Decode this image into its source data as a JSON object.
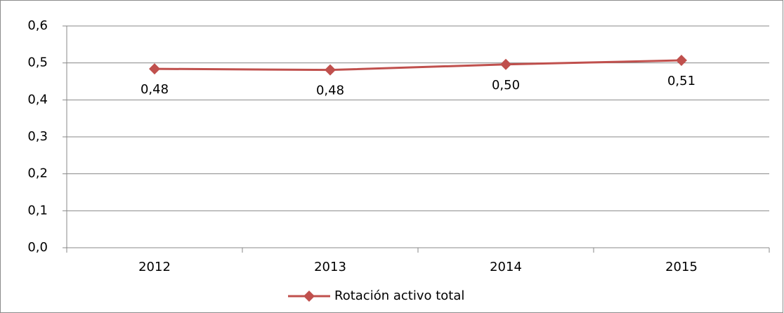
{
  "chart_data": {
    "type": "line",
    "categories": [
      "2012",
      "2013",
      "2014",
      "2015"
    ],
    "series": [
      {
        "name": "Rotación activo total",
        "color": "#c0504d",
        "values": [
          0.484,
          0.481,
          0.496,
          0.507
        ],
        "value_labels": [
          "0,48",
          "0,48",
          "0,50",
          "0,51"
        ]
      }
    ],
    "ylim": [
      0,
      0.6
    ],
    "yticks": [
      {
        "value": 0,
        "label": "0,0"
      },
      {
        "value": 0.1,
        "label": "0,1"
      },
      {
        "value": 0.2,
        "label": "0,2"
      },
      {
        "value": 0.3,
        "label": "0,3"
      },
      {
        "value": 0.4,
        "label": "0,4"
      },
      {
        "value": 0.5,
        "label": "0,5"
      },
      {
        "value": 0.6,
        "label": "0,6"
      }
    ],
    "grid": true,
    "legend": "bottom"
  }
}
